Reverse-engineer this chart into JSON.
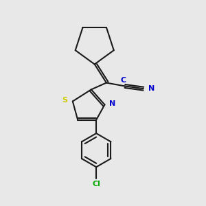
{
  "background_color": "#e8e8e8",
  "bond_color": "#1a1a1a",
  "bond_width": 1.5,
  "atom_colors": {
    "C": "#1a1a1a",
    "N": "#0000cc",
    "S": "#cccc00",
    "Cl": "#00aa00"
  },
  "figsize": [
    3.0,
    3.0
  ],
  "dpi": 100
}
